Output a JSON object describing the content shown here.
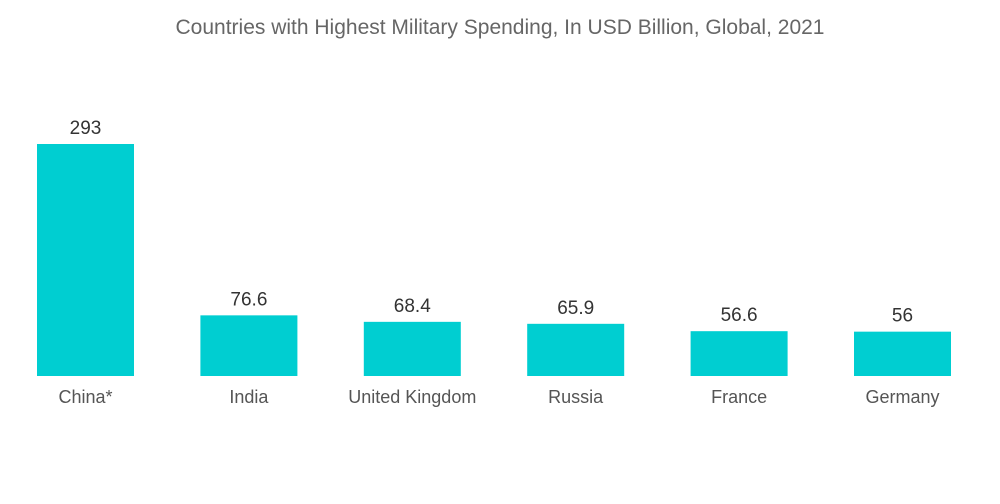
{
  "chart_data": {
    "type": "bar",
    "title": "Countries with Highest Military Spending, In USD Billion, Global, 2021",
    "categories": [
      "China*",
      "India",
      "United Kingdom",
      "Russia",
      "France",
      "Germany"
    ],
    "values": [
      293,
      76.6,
      68.4,
      65.9,
      56.6,
      56
    ],
    "value_labels": [
      "293",
      "76.6",
      "68.4",
      "65.9",
      "56.6",
      "56"
    ],
    "xlabel": "",
    "ylabel": "",
    "ylim": [
      0,
      293
    ],
    "grid": false,
    "legend": "none",
    "bar_color": "#00CED1"
  }
}
